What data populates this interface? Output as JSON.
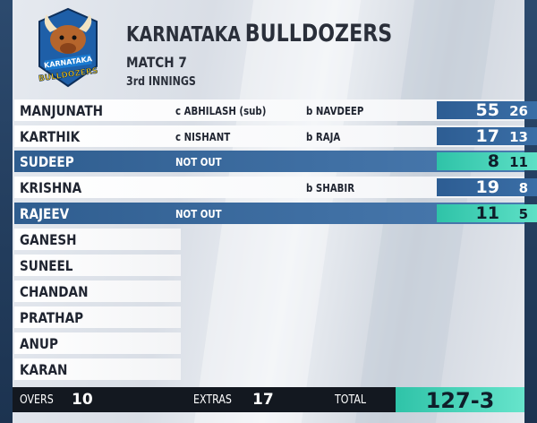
{
  "header": {
    "team_first": "KARNATAKA",
    "team_second": "BULLDOZERS",
    "match": "MATCH 7",
    "innings": "3rd INNINGS",
    "logo_text_top": "KARNATAKA",
    "logo_text_bottom": "BULLDOZERS"
  },
  "batsmen": [
    {
      "name": "MANJUNATH",
      "dismissal": "c ABHILASH (sub)",
      "bowler": "b NAVDEEP",
      "runs": "55",
      "balls": "26",
      "status": "out"
    },
    {
      "name": "KARTHIK",
      "dismissal": "c NISHANT",
      "bowler": "b RAJA",
      "runs": "17",
      "balls": "13",
      "status": "out"
    },
    {
      "name": "SUDEEP",
      "dismissal": "NOT OUT",
      "bowler": "",
      "runs": "8",
      "balls": "11",
      "status": "notout"
    },
    {
      "name": "KRISHNA",
      "dismissal": "",
      "bowler": "b SHABIR",
      "runs": "19",
      "balls": "8",
      "status": "out"
    },
    {
      "name": "RAJEEV",
      "dismissal": "NOT OUT",
      "bowler": "",
      "runs": "11",
      "balls": "5",
      "status": "notout"
    }
  ],
  "yet_to_bat": [
    "GANESH",
    "SUNEEL",
    "CHANDAN",
    "PRATHAP",
    "ANUP",
    "KARAN"
  ],
  "footer": {
    "overs_label": "OVERS",
    "overs_value": "10",
    "extras_label": "EXTRAS",
    "extras_value": "17",
    "total_label": "TOTAL",
    "total_value": "127-3"
  },
  "colors": {
    "notout_blue": "#3a6ea6",
    "teal_highlight": "#3fd3b6",
    "footer_dark": "#131820"
  }
}
